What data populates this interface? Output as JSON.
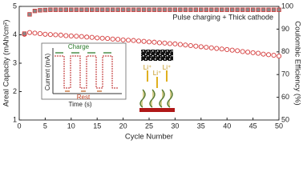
{
  "chart_data": {
    "type": "scatter",
    "xlabel": "Cycle Number",
    "ylabel": "Areal Capacity (mAh/cm²)",
    "y2label": "Coulombic Efficiency (%)",
    "annotation": "Pulse charging + Thick cathode",
    "x": [
      1,
      2,
      3,
      4,
      5,
      6,
      7,
      8,
      9,
      10,
      11,
      12,
      13,
      14,
      15,
      16,
      17,
      18,
      19,
      20,
      21,
      22,
      23,
      24,
      25,
      26,
      27,
      28,
      29,
      30,
      31,
      32,
      33,
      34,
      35,
      36,
      37,
      38,
      39,
      40,
      41,
      42,
      43,
      44,
      45,
      46,
      47,
      48,
      49,
      50
    ],
    "series": [
      {
        "color": "#d43a3a",
        "marker": "open-circle",
        "values": [
          4.02,
          4.08,
          4.06,
          4.04,
          4.02,
          4.01,
          4.0,
          3.99,
          3.97,
          3.96,
          3.95,
          3.94,
          3.92,
          3.91,
          3.89,
          3.88,
          3.87,
          3.85,
          3.84,
          3.82,
          3.81,
          3.8,
          3.78,
          3.77,
          3.75,
          3.74,
          3.72,
          3.71,
          3.69,
          3.68,
          3.66,
          3.64,
          3.62,
          3.6,
          3.58,
          3.56,
          3.54,
          3.52,
          3.5,
          3.48,
          3.46,
          3.44,
          3.41,
          3.39,
          3.37,
          3.35,
          3.32,
          3.3,
          3.28,
          3.25
        ]
      },
      {
        "color": "#8a8a8a",
        "edge_color": "#d43a3a",
        "marker": "square",
        "axis": "y2",
        "values": [
          88,
          96.5,
          98,
          98.3,
          98.4,
          98.5,
          98.5,
          98.5,
          98.5,
          98.5,
          98.5,
          98.5,
          98.5,
          98.5,
          98.5,
          98.5,
          98.5,
          98.5,
          98.5,
          98.5,
          98.5,
          98.5,
          98.5,
          98.5,
          98.5,
          98.5,
          98.5,
          98.5,
          98.5,
          98.5,
          98.5,
          98.5,
          98.5,
          98.5,
          98.5,
          98.5,
          98.5,
          98.5,
          98.5,
          98.5,
          98.5,
          98.5,
          98.5,
          98.5,
          98.5,
          98.5,
          98.5,
          98.5,
          98.5,
          98.5
        ]
      }
    ],
    "xlim": [
      0,
      50
    ],
    "xticks": [
      0,
      5,
      10,
      15,
      20,
      25,
      30,
      35,
      40,
      45,
      50
    ],
    "ylim": [
      1,
      5
    ],
    "yticks": [
      1,
      2,
      3,
      4,
      5
    ],
    "y2lim": [
      50,
      100
    ],
    "y2ticks": [
      50,
      60,
      70,
      80,
      90,
      100
    ],
    "inset": {
      "charge": "Charge",
      "rest": "Rest",
      "ylabel": "Current (mA)",
      "xlabel": "Time (s)",
      "ions": [
        "Li⁺",
        "Li⁺",
        "Li⁺"
      ]
    }
  }
}
